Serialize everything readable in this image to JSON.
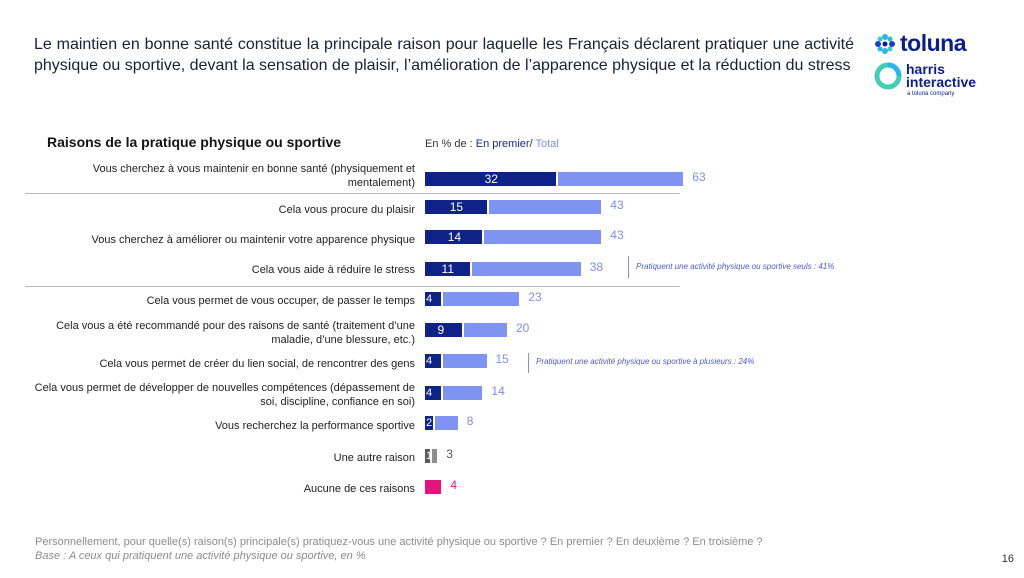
{
  "headline": "Le maintien en bonne santé constitue la principale raison pour laquelle les Français déclarent pratiquer une activité physique ou sportive, devant la sensation de plaisir, l’amélioration de l’apparence physique et la réduction du stress",
  "logo": {
    "brand": "toluna",
    "sub_brand_line1": "harris",
    "sub_brand_line2": "interactive",
    "tagline": "a toluna company",
    "brand_color": "#0b1e8c"
  },
  "legend": {
    "prefix": "En % de : ",
    "first": "En premier",
    "sep": "/ ",
    "total": "Total"
  },
  "colors": {
    "first": "#0e2287",
    "total": "#7f94f2",
    "other": "#595959",
    "none": "#e5147d"
  },
  "notes": {
    "solo": "Pratiquent une activité physique ou sportive seuls : 41%",
    "multi": "Pratiquent une activité physique ou sportive à plusieurs : 24%"
  },
  "chart_data": {
    "type": "bar",
    "title": "Raisons de la pratique physique ou sportive",
    "unit": "%",
    "categories": [
      "Vous cherchez à vous maintenir en bonne santé (physiquement et mentalement)",
      "Cela vous procure du plaisir",
      "Vous cherchez à améliorer ou maintenir votre apparence physique",
      "Cela vous aide à réduire le stress",
      "Cela vous permet de vous occuper, de passer le temps",
      "Cela vous a été recommandé pour des raisons de santé (traitement d’une maladie, d’une blessure, etc.)",
      "Cela vous permet de créer du lien social, de rencontrer des gens",
      "Cela vous permet de développer de nouvelles compétences (dépassement de soi, discipline, confiance en soi)",
      "Vous recherchez la performance sportive",
      "Une autre raison",
      "Aucune de ces raisons"
    ],
    "series": [
      {
        "name": "En premier",
        "values": [
          32,
          15,
          14,
          11,
          4,
          9,
          4,
          4,
          2,
          1,
          4
        ]
      },
      {
        "name": "Total",
        "values": [
          63,
          43,
          43,
          38,
          23,
          20,
          15,
          14,
          8,
          3,
          4
        ]
      }
    ],
    "first_labels": [
      "32",
      "15",
      "14",
      "11",
      "4",
      "9",
      "4",
      "4",
      "2",
      "1",
      ""
    ],
    "total_labels": [
      "63",
      "43",
      "43",
      "38",
      "23",
      "20",
      "15",
      "14",
      "8",
      "3",
      "4"
    ]
  },
  "footer": {
    "question": "Personnellement, pour quelle(s) raison(s) principale(s) pratiquez-vous une activité physique ou sportive ? En premier ? En deuxième ? En troisième ?",
    "base": "Base : A ceux qui pratiquent une activité physique ou sportive, en %"
  },
  "page_number": "16"
}
